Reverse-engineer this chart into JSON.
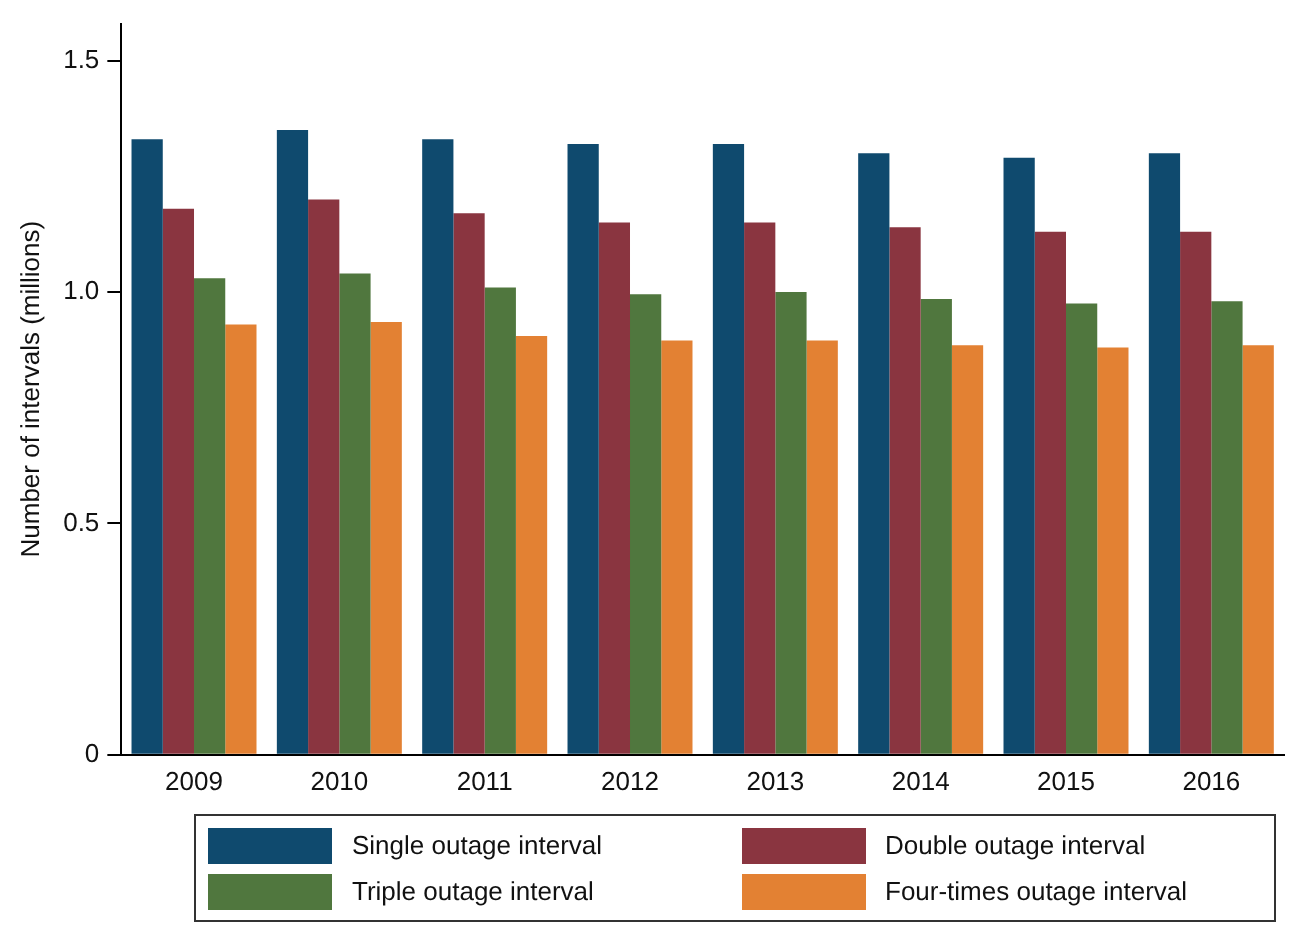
{
  "chart_data": {
    "type": "bar",
    "ylabel": "Number of intervals (millions)",
    "categories": [
      "2009",
      "2010",
      "2011",
      "2012",
      "2013",
      "2014",
      "2015",
      "2016"
    ],
    "series": [
      {
        "name": "Single outage interval",
        "color": "#0f4a6e",
        "values": [
          1.33,
          1.35,
          1.33,
          1.32,
          1.32,
          1.3,
          1.29,
          1.3
        ]
      },
      {
        "name": "Double outage interval",
        "color": "#8a3540",
        "values": [
          1.18,
          1.2,
          1.17,
          1.15,
          1.15,
          1.14,
          1.13,
          1.13
        ]
      },
      {
        "name": "Triple outage interval",
        "color": "#50773e",
        "values": [
          1.03,
          1.04,
          1.01,
          0.995,
          1.0,
          0.985,
          0.975,
          0.98
        ]
      },
      {
        "name": "Four-times outage interval",
        "color": "#e38133",
        "values": [
          0.93,
          0.935,
          0.905,
          0.895,
          0.895,
          0.885,
          0.88,
          0.885
        ]
      }
    ],
    "ylim": [
      0,
      1.58
    ],
    "yticks": [
      0,
      {
        "value": 0.5,
        "label": "0.5"
      },
      {
        "value": 1,
        "label": "1.0"
      },
      {
        "value": 1.5,
        "label": "1.5"
      }
    ],
    "grid": false,
    "legend": "bottom"
  }
}
